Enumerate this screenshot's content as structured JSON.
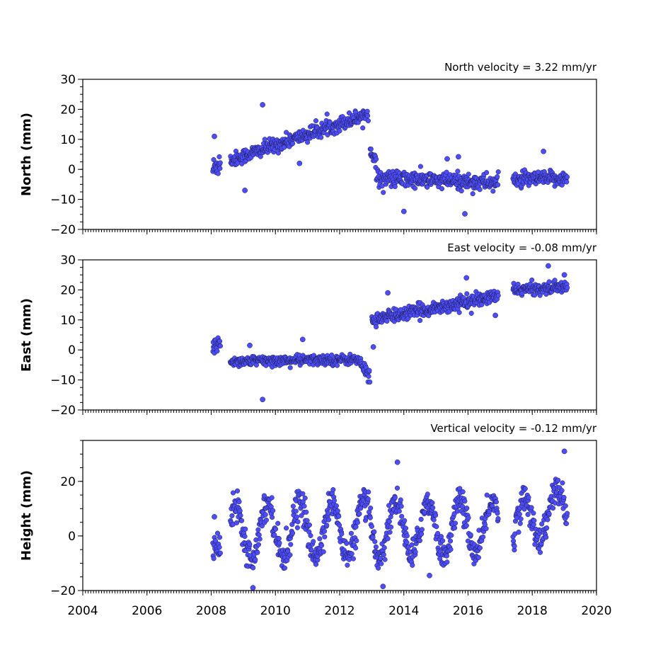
{
  "chart_data": {
    "type": "scatter",
    "x_range": [
      2004,
      2020
    ],
    "x_ticks": [
      2004,
      2006,
      2008,
      2010,
      2012,
      2014,
      2016,
      2018,
      2020
    ],
    "x_minor_tick_step": 0.0833,
    "marker_color": "#4d4dff",
    "marker_edge_color": "#1a1a40",
    "grid": false,
    "panels": [
      {
        "id": "north",
        "ylabel": "North (mm)",
        "velocity_text": "North velocity = 3.22 mm/yr",
        "ylim": [
          -20,
          30
        ],
        "y_ticks": [
          -20,
          -10,
          0,
          10,
          20,
          30
        ],
        "y_tick_labels": [
          "−20",
          "−10",
          "0",
          "10",
          "20",
          "30"
        ],
        "segments": [
          {
            "x_start": 2008.05,
            "x_end": 2008.3,
            "y_start": 0,
            "y_end": 3,
            "noise": 3.5
          },
          {
            "x_start": 2008.6,
            "x_end": 2012.9,
            "y_start": 3,
            "y_end": 18.5,
            "noise": 2.0
          },
          {
            "x_start": 2012.95,
            "x_end": 2013.15,
            "y_start": 7,
            "y_end": 2,
            "noise": 1.5
          },
          {
            "x_start": 2013.15,
            "x_end": 2016.95,
            "y_start": -3,
            "y_end": -4.5,
            "noise": 2.3
          },
          {
            "x_start": 2017.4,
            "x_end": 2019.1,
            "y_start": -3.5,
            "y_end": -3,
            "noise": 2.0
          }
        ],
        "outliers": [
          [
            2008.1,
            11
          ],
          [
            2009.05,
            -7
          ],
          [
            2009.6,
            21.5
          ],
          [
            2010.75,
            2
          ],
          [
            2015.7,
            4.2
          ],
          [
            2015.35,
            3.5
          ],
          [
            2014.0,
            -14
          ],
          [
            2015.9,
            -14.8
          ],
          [
            2018.35,
            6
          ]
        ]
      },
      {
        "id": "east",
        "ylabel": "East (mm)",
        "velocity_text": "East velocity = -0.08 mm/yr",
        "ylim": [
          -20,
          30
        ],
        "y_ticks": [
          -20,
          -10,
          0,
          10,
          20,
          30
        ],
        "y_tick_labels": [
          "−20",
          "−10",
          "0",
          "10",
          "20",
          "30"
        ],
        "segments": [
          {
            "x_start": 2008.05,
            "x_end": 2008.3,
            "y_start": 0,
            "y_end": 3,
            "noise": 2.5
          },
          {
            "x_start": 2008.6,
            "x_end": 2012.6,
            "y_start": -3.8,
            "y_end": -3.2,
            "noise": 1.4
          },
          {
            "x_start": 2012.6,
            "x_end": 2012.95,
            "y_start": -4,
            "y_end": -9,
            "noise": 1.8
          },
          {
            "x_start": 2013.0,
            "x_end": 2016.95,
            "y_start": 10,
            "y_end": 18,
            "noise": 1.8
          },
          {
            "x_start": 2017.4,
            "x_end": 2019.1,
            "y_start": 20,
            "y_end": 21,
            "noise": 1.5
          }
        ],
        "outliers": [
          [
            2009.6,
            -16.5
          ],
          [
            2009.2,
            1.5
          ],
          [
            2010.85,
            3.5
          ],
          [
            2013.05,
            1
          ],
          [
            2013.5,
            19
          ],
          [
            2015.95,
            24
          ],
          [
            2018.5,
            28
          ],
          [
            2016.85,
            11.5
          ],
          [
            2019.0,
            25
          ]
        ]
      },
      {
        "id": "height",
        "ylabel": "Height (mm)",
        "velocity_text": "Vertical velocity = -0.12 mm/yr",
        "ylim": [
          -20,
          35
        ],
        "y_ticks": [
          -20,
          0,
          20
        ],
        "y_tick_labels": [
          "−20",
          "0",
          "20"
        ],
        "minor_y_step": 5,
        "segments": [
          {
            "x_start": 2008.05,
            "x_end": 2008.3,
            "y_start": -4,
            "y_end": -4,
            "noise": 5,
            "seasonal": 0
          },
          {
            "x_start": 2008.6,
            "x_end": 2016.95,
            "y_start": 2,
            "y_end": 3,
            "noise": 4.5,
            "seasonal": 10
          },
          {
            "x_start": 2017.4,
            "x_end": 2019.1,
            "y_start": 4,
            "y_end": 10,
            "noise": 4.5,
            "seasonal": 8
          }
        ],
        "outliers": [
          [
            2008.1,
            7
          ],
          [
            2013.8,
            27
          ],
          [
            2019.0,
            31
          ],
          [
            2014.8,
            -14.5
          ],
          [
            2013.35,
            -18.5
          ],
          [
            2009.3,
            -19
          ]
        ]
      }
    ]
  }
}
